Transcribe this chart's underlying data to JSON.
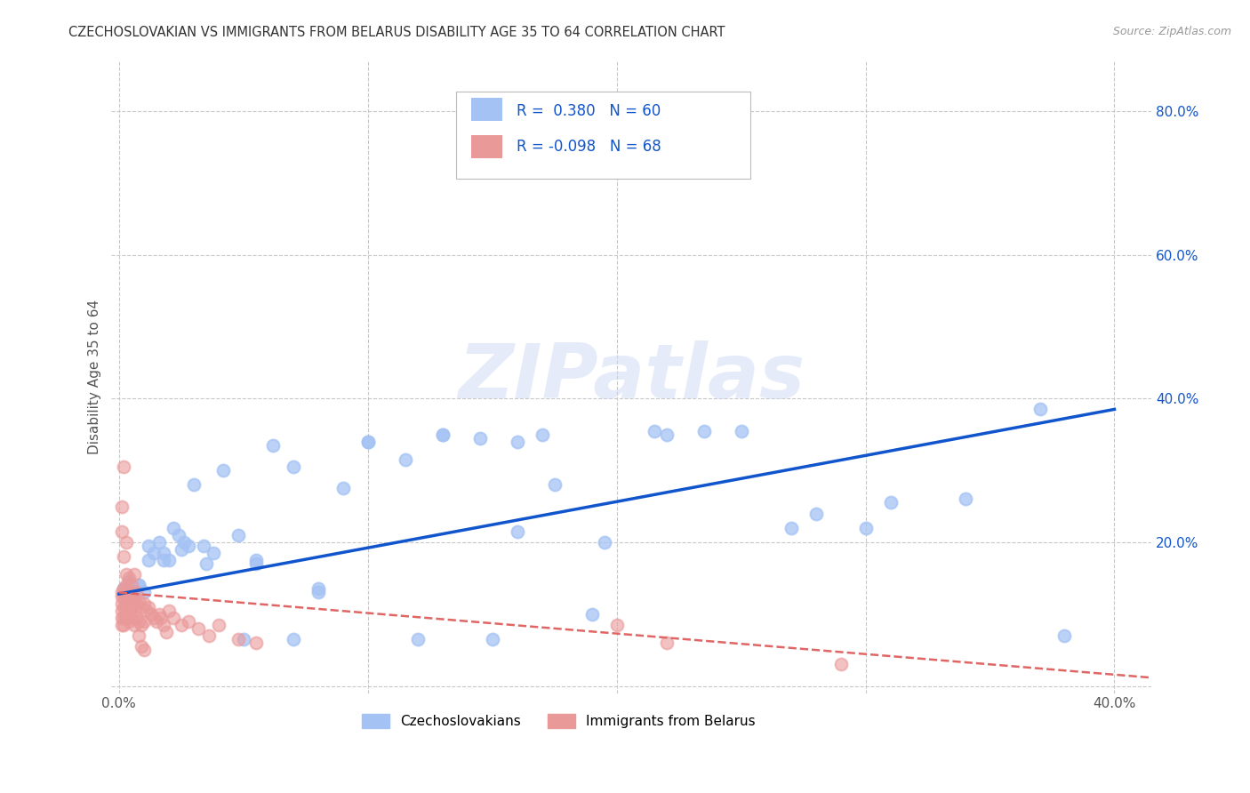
{
  "title": "CZECHOSLOVAKIAN VS IMMIGRANTS FROM BELARUS DISABILITY AGE 35 TO 64 CORRELATION CHART",
  "source": "Source: ZipAtlas.com",
  "ylabel": "Disability Age 35 to 64",
  "xlim": [
    -0.003,
    0.415
  ],
  "ylim": [
    -0.01,
    0.87
  ],
  "xticks": [
    0.0,
    0.1,
    0.2,
    0.3,
    0.4
  ],
  "yticks": [
    0.0,
    0.2,
    0.4,
    0.6,
    0.8
  ],
  "background_color": "#ffffff",
  "grid_color": "#c8c8c8",
  "watermark": "ZIPatlas",
  "blue_scatter_color": "#a4c2f4",
  "pink_scatter_color": "#ea9999",
  "blue_line_color": "#1155cc",
  "pink_line_color": "#e06666",
  "czecho_x": [
    0.002,
    0.004,
    0.005,
    0.006,
    0.008,
    0.01,
    0.012,
    0.014,
    0.016,
    0.018,
    0.02,
    0.022,
    0.024,
    0.026,
    0.028,
    0.03,
    0.034,
    0.038,
    0.042,
    0.048,
    0.055,
    0.062,
    0.07,
    0.08,
    0.09,
    0.1,
    0.115,
    0.13,
    0.145,
    0.16,
    0.175,
    0.195,
    0.215,
    0.235,
    0.16,
    0.22,
    0.25,
    0.27,
    0.3,
    0.34,
    0.37,
    0.31,
    0.28,
    0.38,
    0.13,
    0.17,
    0.19,
    0.055,
    0.08,
    0.1,
    0.15,
    0.12,
    0.07,
    0.05,
    0.035,
    0.025,
    0.018,
    0.012,
    0.008,
    0.004
  ],
  "czecho_y": [
    0.135,
    0.145,
    0.13,
    0.125,
    0.14,
    0.13,
    0.195,
    0.185,
    0.2,
    0.175,
    0.175,
    0.22,
    0.21,
    0.2,
    0.195,
    0.28,
    0.195,
    0.185,
    0.3,
    0.21,
    0.175,
    0.335,
    0.305,
    0.135,
    0.275,
    0.34,
    0.315,
    0.35,
    0.345,
    0.34,
    0.28,
    0.2,
    0.355,
    0.355,
    0.215,
    0.35,
    0.355,
    0.22,
    0.22,
    0.26,
    0.385,
    0.255,
    0.24,
    0.07,
    0.35,
    0.35,
    0.1,
    0.17,
    0.13,
    0.34,
    0.065,
    0.065,
    0.065,
    0.065,
    0.17,
    0.19,
    0.185,
    0.175,
    0.14,
    0.12
  ],
  "belarus_x": [
    0.001,
    0.001,
    0.001,
    0.001,
    0.001,
    0.001,
    0.002,
    0.002,
    0.002,
    0.002,
    0.002,
    0.003,
    0.003,
    0.003,
    0.003,
    0.004,
    0.004,
    0.004,
    0.004,
    0.005,
    0.005,
    0.005,
    0.006,
    0.006,
    0.006,
    0.007,
    0.007,
    0.008,
    0.008,
    0.009,
    0.009,
    0.01,
    0.01,
    0.011,
    0.012,
    0.013,
    0.014,
    0.015,
    0.016,
    0.017,
    0.018,
    0.019,
    0.02,
    0.022,
    0.025,
    0.028,
    0.032,
    0.036,
    0.04,
    0.048,
    0.055,
    0.2,
    0.22,
    0.29,
    0.001,
    0.002,
    0.003,
    0.001,
    0.002,
    0.003,
    0.004,
    0.005,
    0.006,
    0.007,
    0.008,
    0.009,
    0.01
  ],
  "belarus_y": [
    0.13,
    0.125,
    0.115,
    0.105,
    0.095,
    0.085,
    0.135,
    0.125,
    0.11,
    0.095,
    0.085,
    0.14,
    0.125,
    0.11,
    0.095,
    0.13,
    0.12,
    0.105,
    0.09,
    0.125,
    0.11,
    0.095,
    0.12,
    0.105,
    0.085,
    0.115,
    0.095,
    0.12,
    0.09,
    0.11,
    0.085,
    0.115,
    0.09,
    0.105,
    0.11,
    0.1,
    0.095,
    0.09,
    0.1,
    0.095,
    0.085,
    0.075,
    0.105,
    0.095,
    0.085,
    0.09,
    0.08,
    0.07,
    0.085,
    0.065,
    0.06,
    0.085,
    0.06,
    0.03,
    0.25,
    0.305,
    0.2,
    0.215,
    0.18,
    0.155,
    0.15,
    0.14,
    0.155,
    0.13,
    0.07,
    0.055,
    0.05
  ],
  "blue_trend_x": [
    0.0,
    0.4
  ],
  "blue_trend_y": [
    0.128,
    0.385
  ],
  "pink_trend_x": [
    0.0,
    0.42
  ],
  "pink_trend_y": [
    0.13,
    0.01
  ]
}
